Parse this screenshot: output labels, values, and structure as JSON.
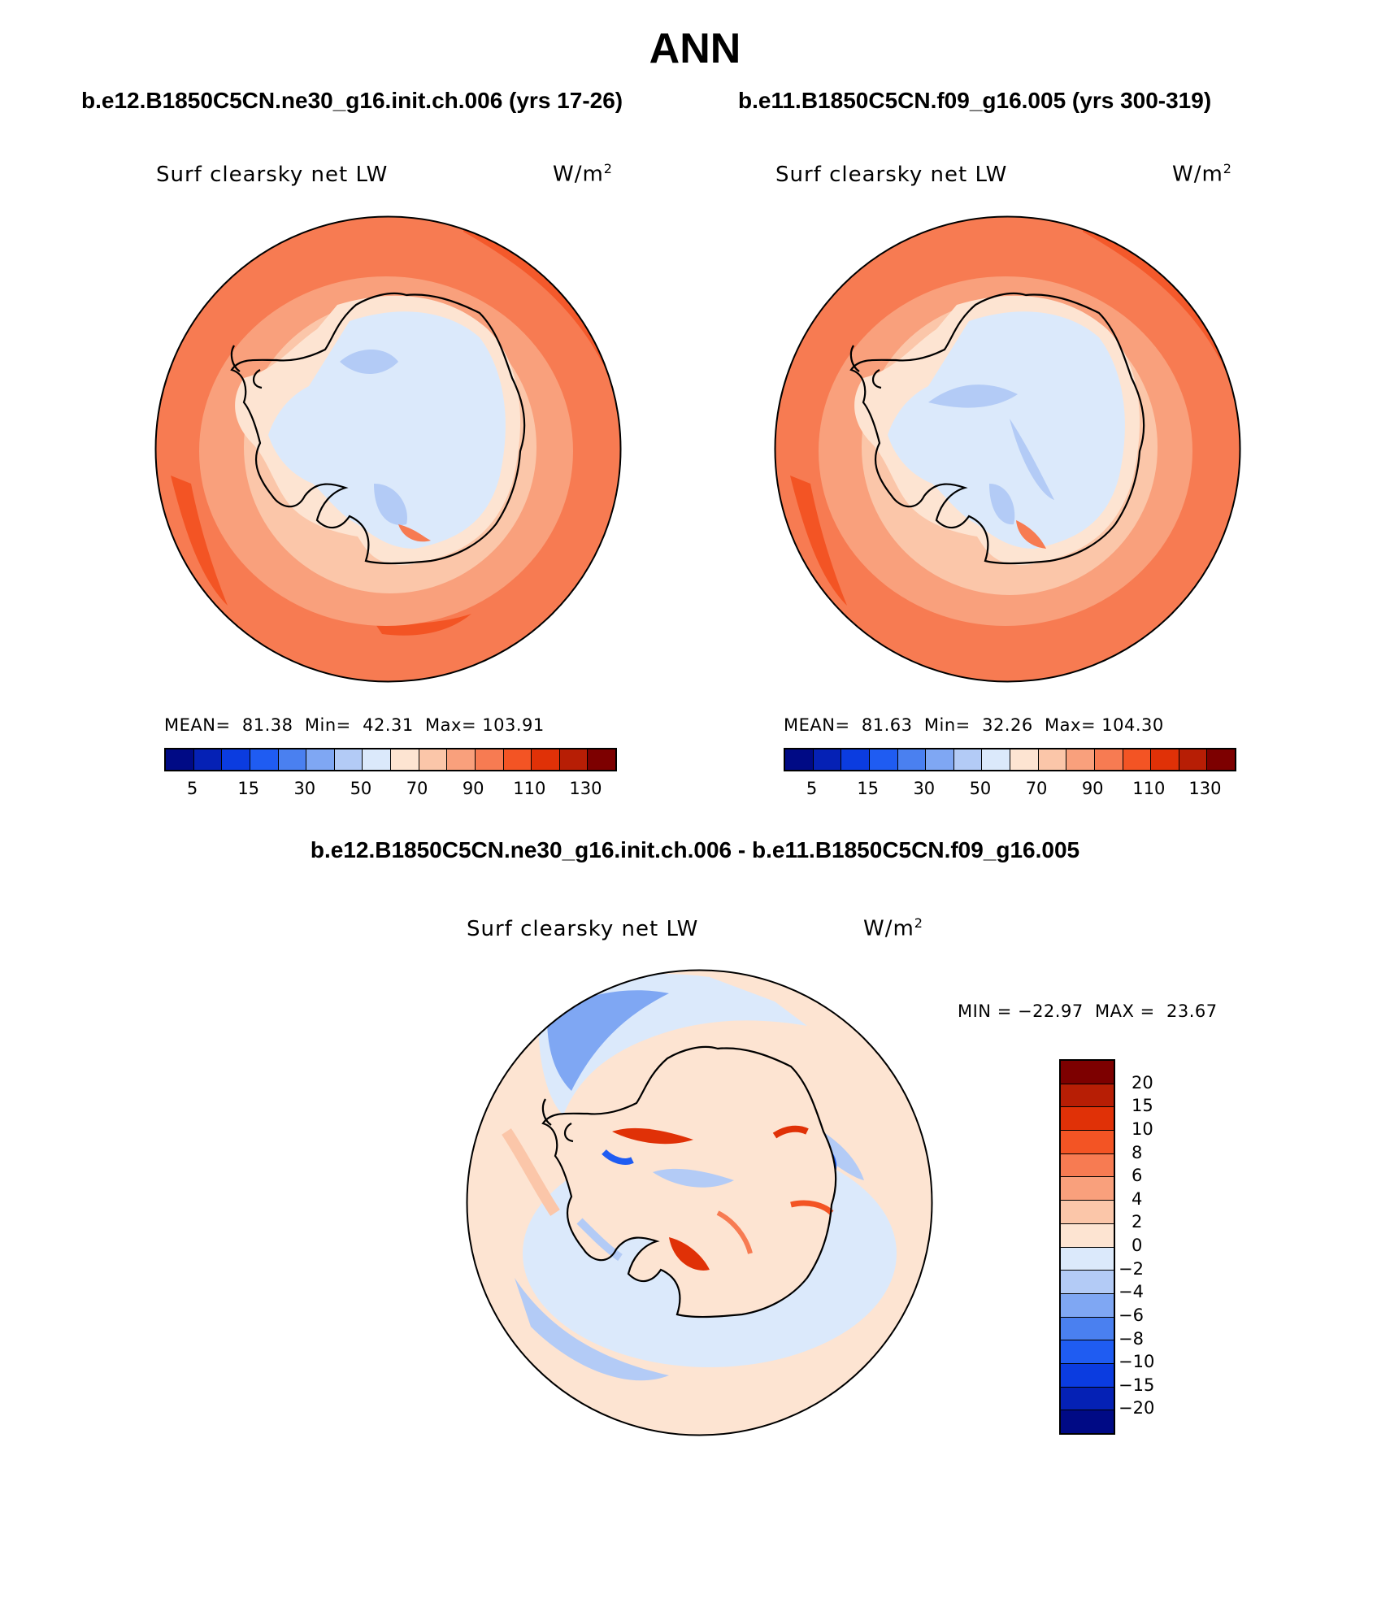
{
  "figure": {
    "season": "ANN",
    "case_a": "b.e12.B1850C5CN.ne30_g16.init.ch.006 (yrs 17-26)",
    "case_b": "b.e11.B1850C5CN.f09_g16.005 (yrs 300-319)",
    "diff_title": "b.e12.B1850C5CN.ne30_g16.init.ch.006 - b.e11.B1850C5CN.f09_g16.005"
  },
  "panels": [
    {
      "variable": "Surf clearsky net LW",
      "units": "W/m",
      "units_sup": "2",
      "stats": "MEAN=  81.38  Min=  42.31  Max= 103.91",
      "mean": 81.38,
      "min": 42.31,
      "max": 103.91
    },
    {
      "variable": "Surf clearsky net LW",
      "units": "W/m",
      "units_sup": "2",
      "stats": "MEAN=  81.63  Min=  32.26  Max= 104.30",
      "mean": 81.63,
      "min": 32.26,
      "max": 104.3
    },
    {
      "variable": "Surf clearsky net LW",
      "units": "W/m",
      "units_sup": "2",
      "stats": "MIN = −22.97  MAX =  23.67",
      "min": -22.97,
      "max": 23.67
    }
  ],
  "colorbar_main": {
    "tick_labels": [
      "5",
      "15",
      "30",
      "50",
      "70",
      "90",
      "110",
      "130"
    ],
    "colors": [
      "#000a85",
      "#0521b5",
      "#0b3ce0",
      "#1f5cf2",
      "#4a80f0",
      "#7fa7f3",
      "#b3cbf6",
      "#dbe9fb",
      "#fde4d2",
      "#fbc6a9",
      "#f9a07c",
      "#f77b52",
      "#f35424",
      "#e03107",
      "#b71e05",
      "#7d0000"
    ]
  },
  "colorbar_diff": {
    "tick_labels": [
      "20",
      "15",
      "10",
      "8",
      "6",
      "4",
      "2",
      "0",
      "−2",
      "−4",
      "−6",
      "−8",
      "−10",
      "−15",
      "−20"
    ],
    "colors": [
      "#7d0000",
      "#b71e05",
      "#e03107",
      "#f35424",
      "#f77b52",
      "#f9a07c",
      "#fbc6a9",
      "#fde4d2",
      "#dbe9fb",
      "#b3cbf6",
      "#7fa7f3",
      "#4a80f0",
      "#1f5cf2",
      "#0b3ce0",
      "#0521b5",
      "#000a85"
    ]
  }
}
